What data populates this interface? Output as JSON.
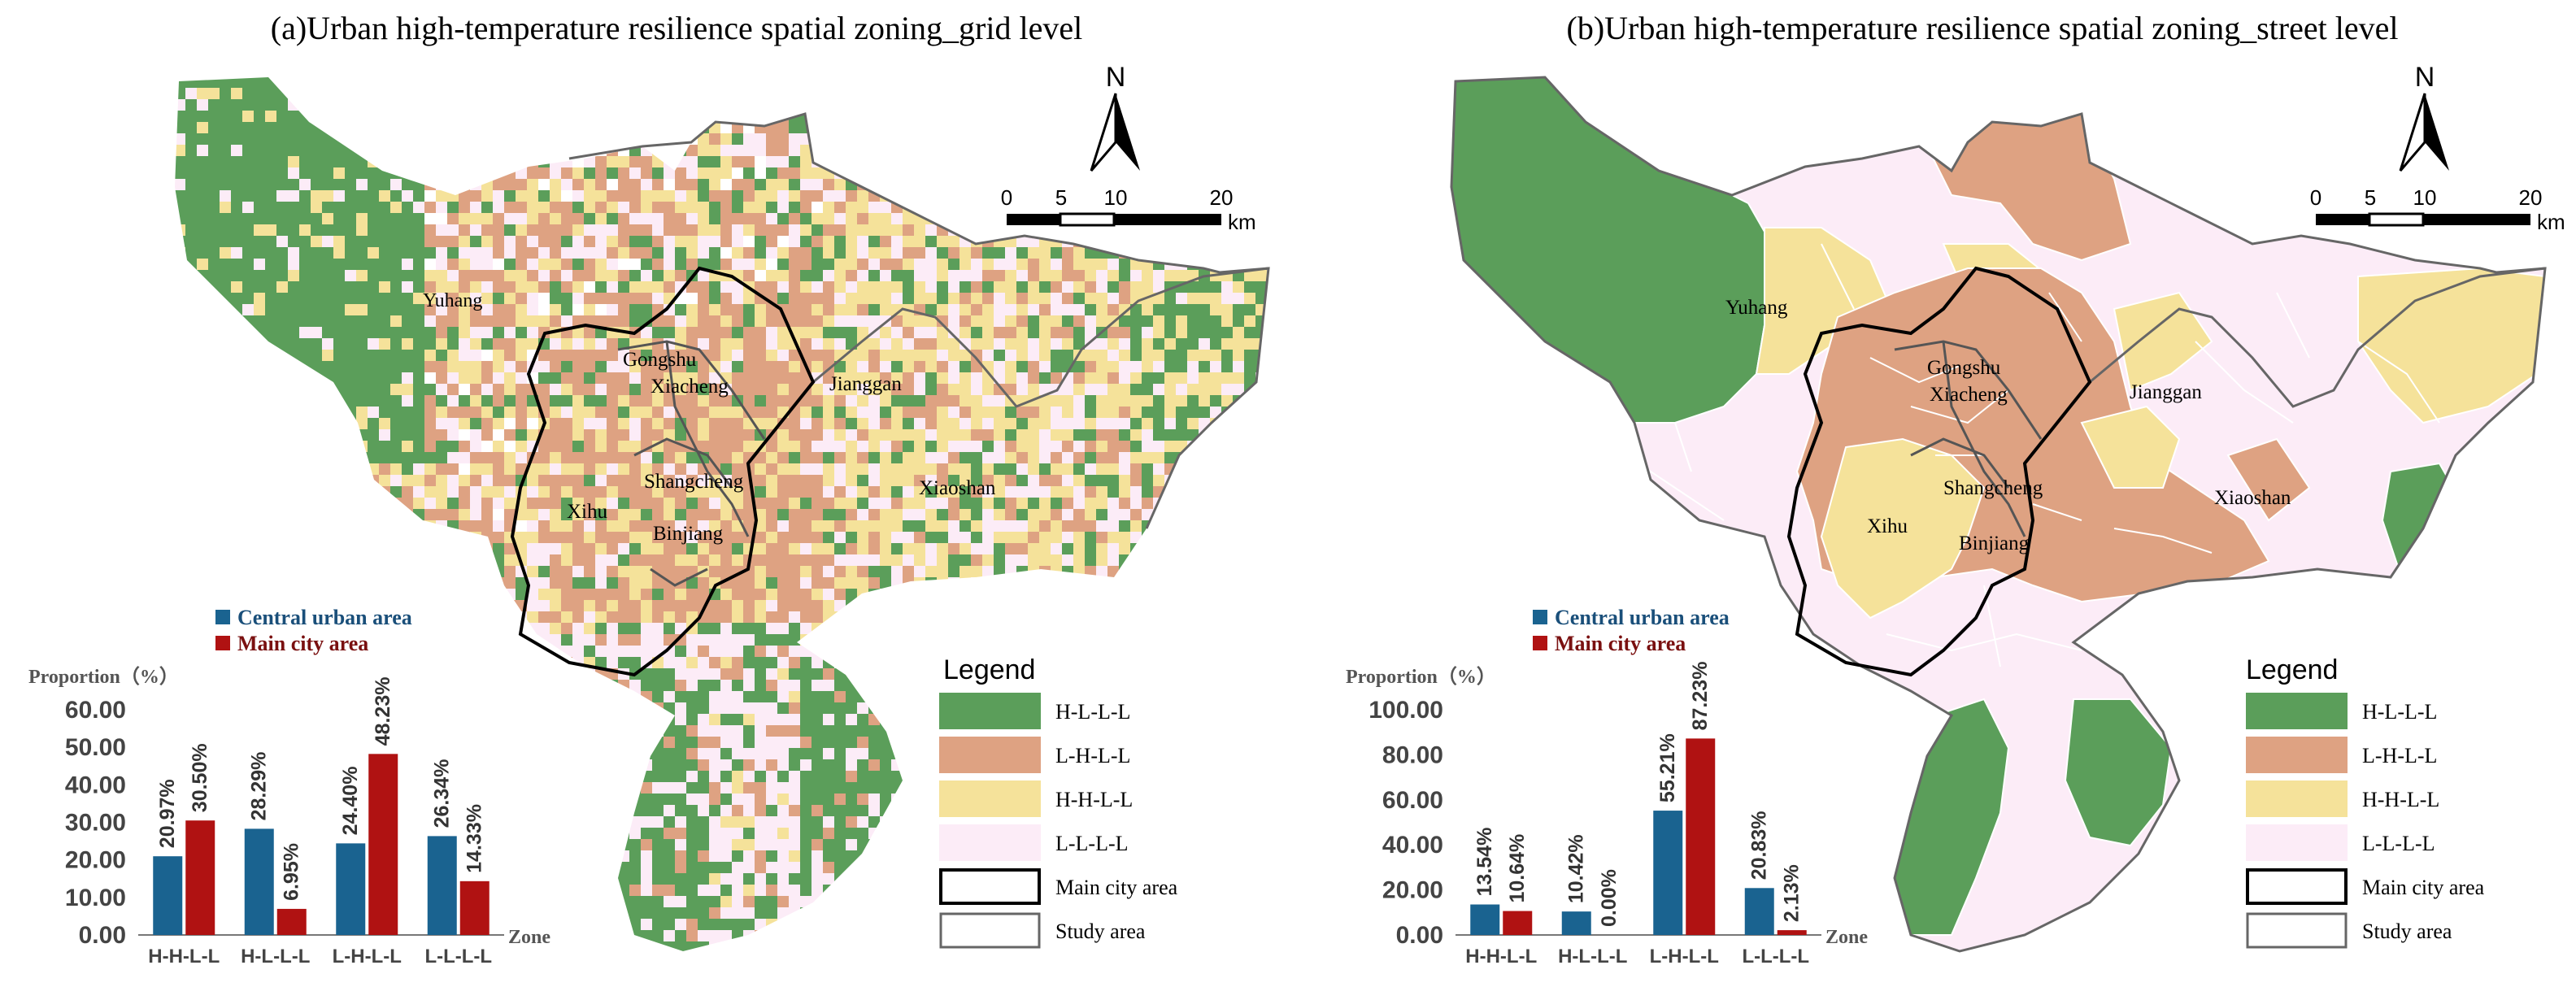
{
  "colors": {
    "HLLL": "#5b9e5a",
    "LHLL": "#dea282",
    "HHLL": "#f5e29a",
    "LLLL": "#fcecf7",
    "central": "#1a6390",
    "main": "#b01212",
    "study_outline": "#666666",
    "main_outline": "#000000"
  },
  "panels": [
    {
      "id": "a",
      "title": "(a)Urban high-temperature resilience spatial zoning_grid level",
      "north": "N",
      "scale": {
        "ticks": [
          "0",
          "5",
          "10",
          "20"
        ],
        "unit": "km"
      },
      "places": [
        "Yuhang",
        "Gongshu",
        "Xiacheng",
        "Jianggan",
        "Shangcheng",
        "Xihu",
        "Binjiang",
        "Xiaoshan"
      ],
      "legend": {
        "title": "Legend",
        "items": [
          {
            "label": "H-L-L-L",
            "color_key": "HLLL"
          },
          {
            "label": "L-H-L-L",
            "color_key": "LHLL"
          },
          {
            "label": "H-H-L-L",
            "color_key": "HHLL"
          },
          {
            "label": "L-L-L-L",
            "color_key": "LLLL"
          },
          {
            "label": "Main city area",
            "color_key": "outline_main"
          },
          {
            "label": "Study area",
            "color_key": "outline_study"
          }
        ]
      }
    },
    {
      "id": "b",
      "title": "(b)Urban high-temperature resilience spatial zoning_street level",
      "north": "N",
      "scale": {
        "ticks": [
          "0",
          "5",
          "10",
          "20"
        ],
        "unit": "km"
      },
      "places": [
        "Yuhang",
        "Gongshu",
        "Xiacheng",
        "Jianggan",
        "Shangcheng",
        "Xihu",
        "Binjiang",
        "Xiaoshan"
      ],
      "legend": {
        "title": "Legend",
        "items": [
          {
            "label": "H-L-L-L",
            "color_key": "HLLL"
          },
          {
            "label": "L-H-L-L",
            "color_key": "LHLL"
          },
          {
            "label": "H-H-L-L",
            "color_key": "HHLL"
          },
          {
            "label": "L-L-L-L",
            "color_key": "LLLL"
          },
          {
            "label": "Main city area",
            "color_key": "outline_main"
          },
          {
            "label": "Study area",
            "color_key": "outline_study"
          }
        ]
      }
    }
  ],
  "chart_data": [
    {
      "type": "bar",
      "panel": "a",
      "ylabel": "Proportion（%）",
      "xlabel": "Zone",
      "categories": [
        "H-H-L-L",
        "H-L-L-L",
        "L-H-L-L",
        "L-L-L-L"
      ],
      "yticks": [
        "0.00",
        "10.00",
        "20.00",
        "30.00",
        "40.00",
        "50.00",
        "60.00"
      ],
      "ylim": [
        0,
        60
      ],
      "series": [
        {
          "name": "Central urban area",
          "values": [
            20.97,
            28.29,
            24.4,
            26.34
          ],
          "labels": [
            "20.97%",
            "28.29%",
            "24.40%",
            "26.34%"
          ]
        },
        {
          "name": "Main city area",
          "values": [
            30.5,
            6.95,
            48.23,
            14.33
          ],
          "labels": [
            "30.50%",
            "6.95%",
            "48.23%",
            "14.33%"
          ]
        }
      ]
    },
    {
      "type": "bar",
      "panel": "b",
      "ylabel": "Proportion（%）",
      "xlabel": "Zone",
      "categories": [
        "H-H-L-L",
        "H-L-L-L",
        "L-H-L-L",
        "L-L-L-L"
      ],
      "yticks": [
        "0.00",
        "20.00",
        "40.00",
        "60.00",
        "80.00",
        "100.00"
      ],
      "ylim": [
        0,
        100
      ],
      "series": [
        {
          "name": "Central urban area",
          "values": [
            13.54,
            10.42,
            55.21,
            20.83
          ],
          "labels": [
            "13.54%",
            "10.42%",
            "55.21%",
            "20.83%"
          ]
        },
        {
          "name": "Main city area",
          "values": [
            10.64,
            0.0,
            87.23,
            2.13
          ],
          "labels": [
            "10.64%",
            "0.00%",
            "87.23%",
            "2.13%"
          ]
        }
      ]
    }
  ]
}
